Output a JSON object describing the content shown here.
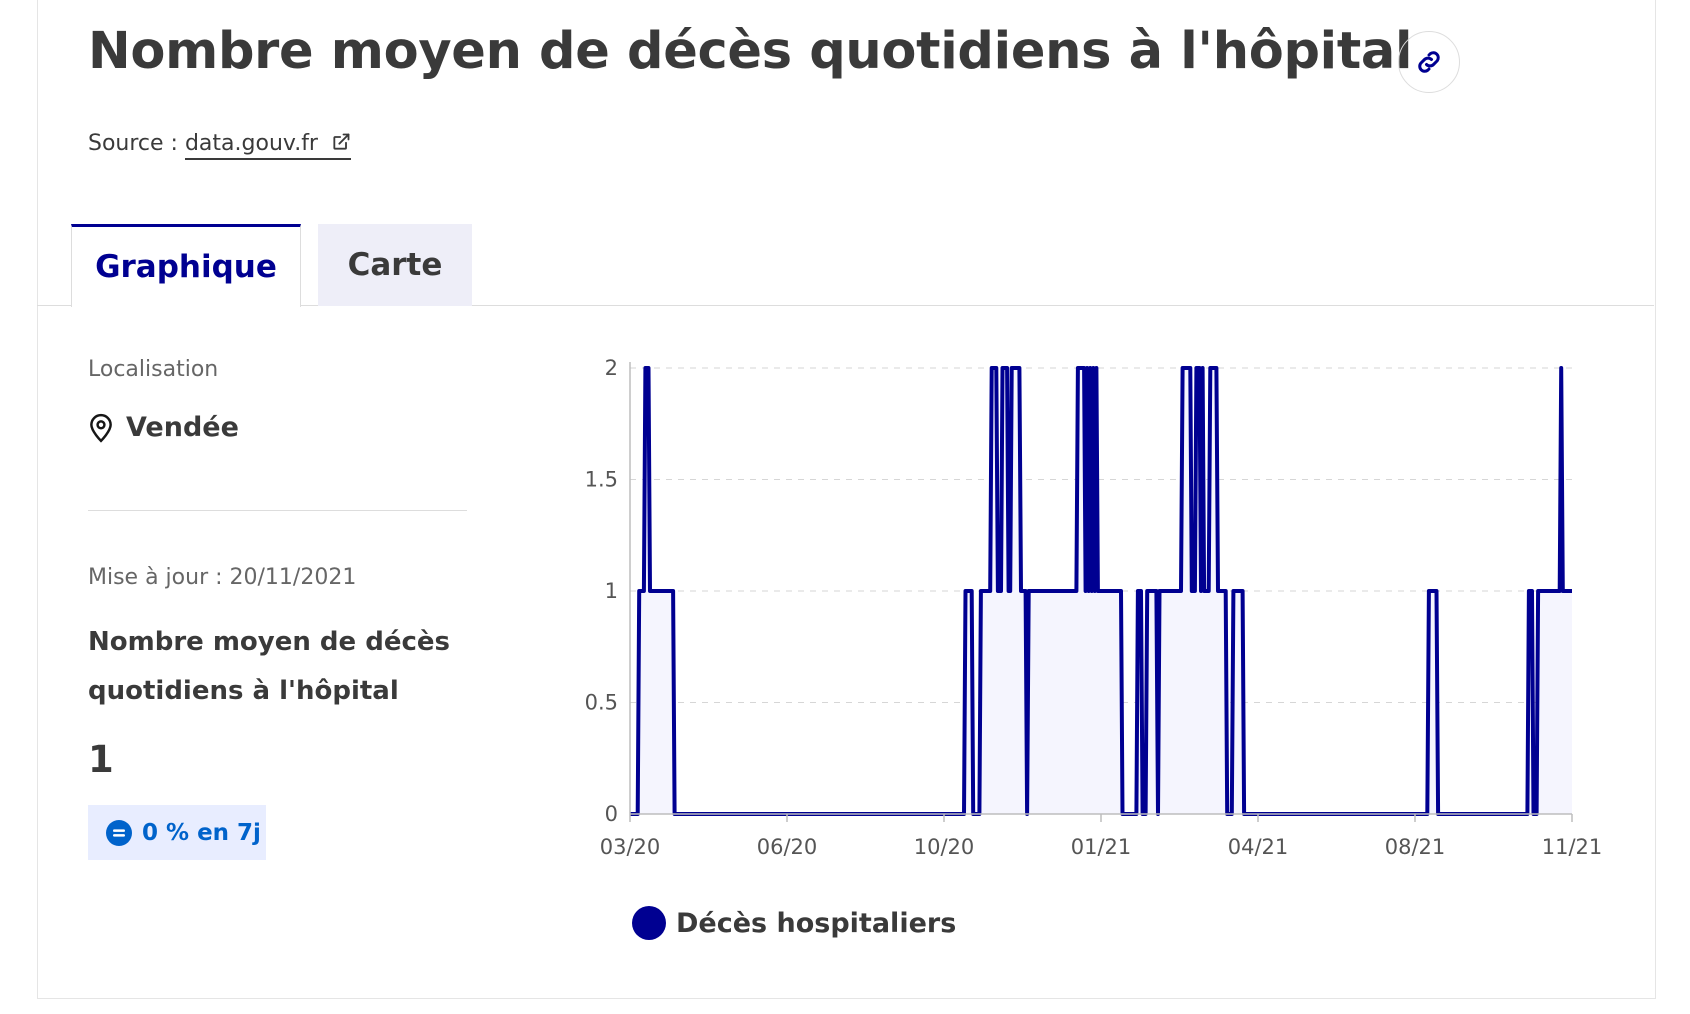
{
  "header": {
    "title": "Nombre moyen de décès quotidiens à l'hôpital",
    "source_prefix": "Source :",
    "source_link": "data.gouv.fr"
  },
  "tabs": [
    {
      "label": "Graphique",
      "active": true
    },
    {
      "label": "Carte",
      "active": false
    }
  ],
  "sidebar": {
    "location_label": "Localisation",
    "location_value": "Vendée",
    "update_label": "Mise à jour : 20/11/2021",
    "indicator_title": "Nombre moyen de décès quotidiens à l'hôpital",
    "indicator_value": "1",
    "trend_badge": "0 % en 7j"
  },
  "colors": {
    "accent": "#000091",
    "badge_bg": "#e8edff",
    "badge_text": "#0063cb",
    "area_fill": "#f5f5fe"
  },
  "icons": {
    "link": "link-icon",
    "external": "external-link-icon",
    "location": "map-pin-icon",
    "trend": "equal-circle-icon"
  },
  "chart_data": {
    "type": "area",
    "title": "",
    "xlabel": "",
    "ylabel": "",
    "x_ticks": [
      "03/20",
      "06/20",
      "10/20",
      "01/21",
      "04/21",
      "08/21",
      "11/21"
    ],
    "y_ticks": [
      "0",
      "0.5",
      "1",
      "1.5",
      "2"
    ],
    "xlim": [
      "2020-03-18",
      "2021-11-20"
    ],
    "ylim": [
      0,
      2
    ],
    "grid": true,
    "legend_position": "bottom-left",
    "series": [
      {
        "name": "Décès hospitaliers",
        "color": "#000091",
        "points": [
          [
            "2020-03-18",
            0
          ],
          [
            "2020-03-23",
            0
          ],
          [
            "2020-03-24",
            1
          ],
          [
            "2020-03-27",
            1
          ],
          [
            "2020-03-28",
            2
          ],
          [
            "2020-03-30",
            2
          ],
          [
            "2020-03-31",
            1
          ],
          [
            "2020-04-15",
            1
          ],
          [
            "2020-04-16",
            0
          ],
          [
            "2020-10-21",
            0
          ],
          [
            "2020-10-22",
            1
          ],
          [
            "2020-10-26",
            1
          ],
          [
            "2020-10-27",
            0
          ],
          [
            "2020-10-31",
            0
          ],
          [
            "2020-11-01",
            1
          ],
          [
            "2020-11-07",
            1
          ],
          [
            "2020-11-08",
            2
          ],
          [
            "2020-11-11",
            2
          ],
          [
            "2020-11-12",
            1
          ],
          [
            "2020-11-14",
            1
          ],
          [
            "2020-11-15",
            2
          ],
          [
            "2020-11-18",
            2
          ],
          [
            "2020-11-19",
            1
          ],
          [
            "2020-11-20",
            1
          ],
          [
            "2020-11-21",
            2
          ],
          [
            "2020-11-26",
            2
          ],
          [
            "2020-11-27",
            1
          ],
          [
            "2020-11-30",
            1
          ],
          [
            "2020-12-01",
            0
          ],
          [
            "2020-12-02",
            1
          ],
          [
            "2021-01-02",
            1
          ],
          [
            "2021-01-03",
            2
          ],
          [
            "2021-01-07",
            2
          ],
          [
            "2021-01-08",
            1
          ],
          [
            "2021-01-09",
            2
          ],
          [
            "2021-01-10",
            1
          ],
          [
            "2021-01-11",
            2
          ],
          [
            "2021-01-12",
            1
          ],
          [
            "2021-01-13",
            2
          ],
          [
            "2021-01-14",
            1
          ],
          [
            "2021-01-15",
            2
          ],
          [
            "2021-01-16",
            1
          ],
          [
            "2021-01-31",
            1
          ],
          [
            "2021-02-01",
            0
          ],
          [
            "2021-02-10",
            0
          ],
          [
            "2021-02-11",
            1
          ],
          [
            "2021-02-13",
            1
          ],
          [
            "2021-02-14",
            0
          ],
          [
            "2021-02-16",
            0
          ],
          [
            "2021-02-17",
            1
          ],
          [
            "2021-02-23",
            1
          ],
          [
            "2021-02-24",
            0
          ],
          [
            "2021-02-25",
            1
          ],
          [
            "2021-03-11",
            1
          ],
          [
            "2021-03-12",
            2
          ],
          [
            "2021-03-17",
            2
          ],
          [
            "2021-03-18",
            1
          ],
          [
            "2021-03-20",
            1
          ],
          [
            "2021-03-21",
            2
          ],
          [
            "2021-03-23",
            2
          ],
          [
            "2021-03-24",
            1
          ],
          [
            "2021-03-25",
            2
          ],
          [
            "2021-03-26",
            1
          ],
          [
            "2021-03-29",
            1
          ],
          [
            "2021-03-30",
            2
          ],
          [
            "2021-04-03",
            2
          ],
          [
            "2021-04-04",
            1
          ],
          [
            "2021-04-09",
            1
          ],
          [
            "2021-04-10",
            0
          ],
          [
            "2021-04-13",
            0
          ],
          [
            "2021-04-14",
            1
          ],
          [
            "2021-04-20",
            1
          ],
          [
            "2021-04-21",
            0
          ],
          [
            "2021-08-18",
            0
          ],
          [
            "2021-08-19",
            1
          ],
          [
            "2021-08-24",
            1
          ],
          [
            "2021-08-25",
            0
          ],
          [
            "2021-10-22",
            0
          ],
          [
            "2021-10-23",
            1
          ],
          [
            "2021-10-25",
            1
          ],
          [
            "2021-10-26",
            0
          ],
          [
            "2021-10-28",
            0
          ],
          [
            "2021-10-29",
            1
          ],
          [
            "2021-11-12",
            1
          ],
          [
            "2021-11-13",
            2
          ],
          [
            "2021-11-14",
            1
          ],
          [
            "2021-11-20",
            1
          ]
        ]
      }
    ]
  }
}
